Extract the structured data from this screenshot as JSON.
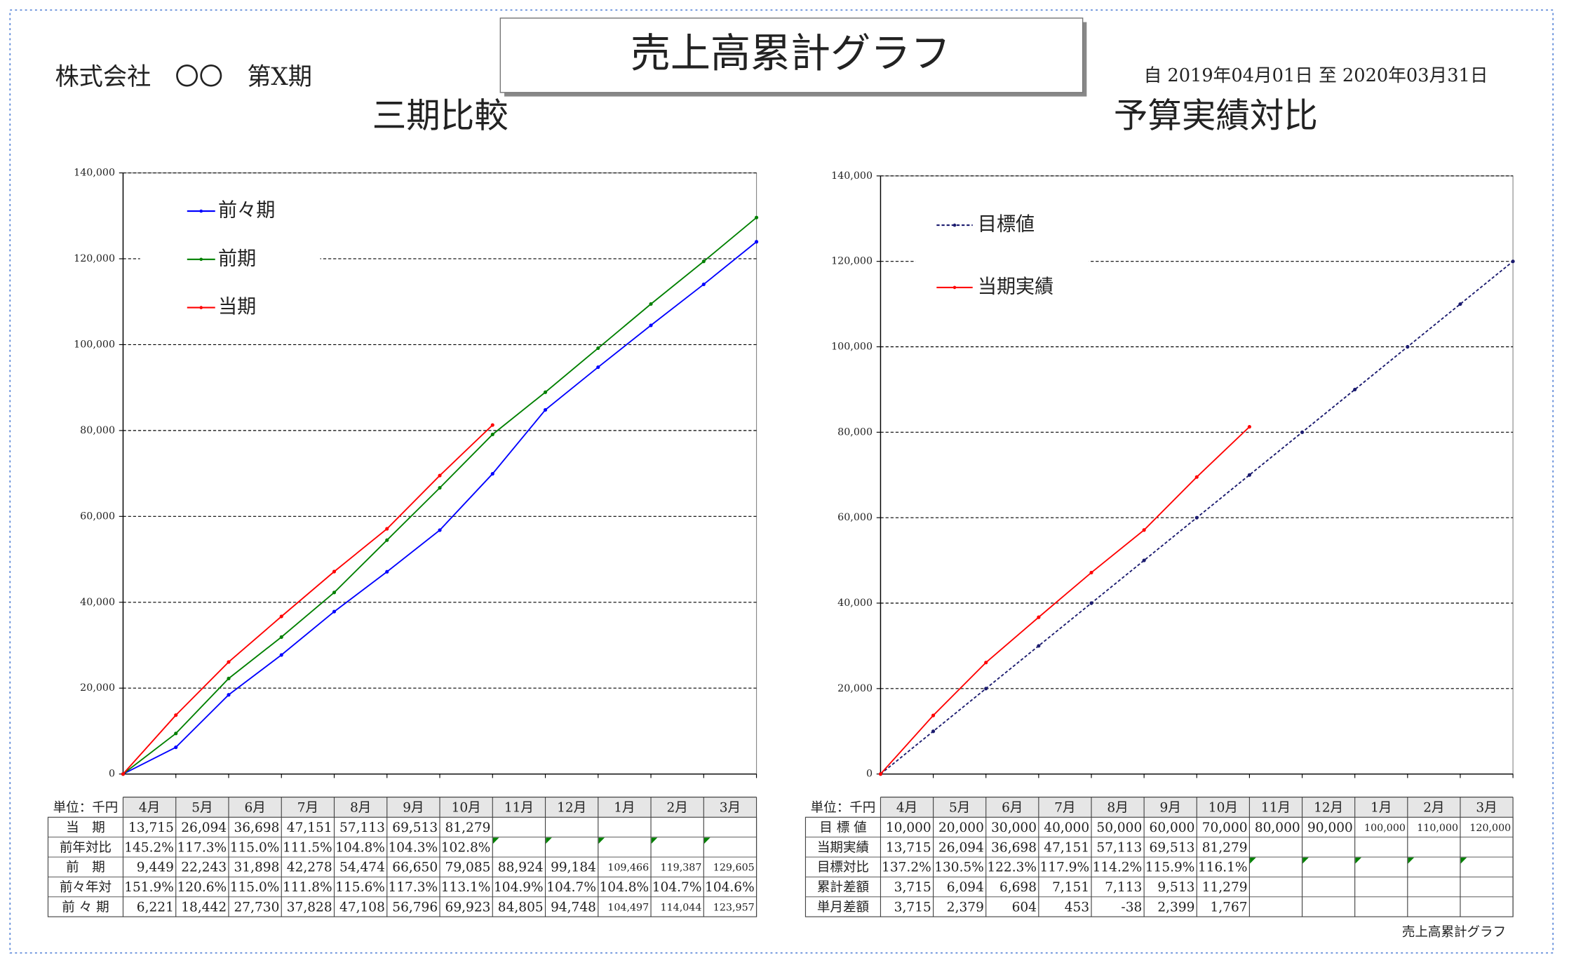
{
  "header": {
    "company": "株式会社　〇〇　第X期",
    "title": "売上高累計グラフ",
    "period": "自 2019年04月01日 至 2020年03月31日",
    "footer": "売上高累計グラフ"
  },
  "chart_data": [
    {
      "type": "line",
      "title": "三期比較",
      "legend": "upper left",
      "grid": true,
      "ylim": [
        0,
        140000
      ],
      "yticks": [
        0,
        {
          "value": 20000,
          "label": "20,000"
        },
        {
          "value": 40000,
          "label": "40,000"
        },
        {
          "value": 60000,
          "label": "60,000"
        },
        {
          "value": 80000,
          "label": "80,000"
        },
        {
          "value": 100000,
          "label": "100,000"
        },
        {
          "value": 120000,
          "label": "120,000"
        },
        {
          "value": 140000,
          "label": "140,000"
        }
      ],
      "series": [
        {
          "name": "前々期",
          "color": "#0000ff",
          "values": [
            0,
            6221,
            18442,
            27730,
            37828,
            47108,
            56796,
            69923,
            84805,
            94748,
            104497,
            114044,
            123957
          ]
        },
        {
          "name": "前期",
          "color": "#008000",
          "values": [
            0,
            9449,
            22243,
            31898,
            42278,
            54474,
            66650,
            79085,
            88924,
            99184,
            109466,
            119387,
            129605
          ]
        },
        {
          "name": "当期",
          "color": "#ff0000",
          "values": [
            0,
            13715,
            26094,
            36698,
            47151,
            57113,
            69513,
            81279,
            null,
            null,
            null,
            null,
            null
          ]
        }
      ]
    },
    {
      "type": "line",
      "title": "予算実績対比",
      "legend": "upper left",
      "grid": true,
      "ylim": [
        0,
        140000
      ],
      "yticks": [
        0,
        {
          "value": 20000,
          "label": "20,000"
        },
        {
          "value": 40000,
          "label": "40,000"
        },
        {
          "value": 60000,
          "label": "60,000"
        },
        {
          "value": 80000,
          "label": "80,000"
        },
        {
          "value": 100000,
          "label": "100,000"
        },
        {
          "value": 120000,
          "label": "120,000"
        },
        {
          "value": 140000,
          "label": "140,000"
        }
      ],
      "series": [
        {
          "name": "目標値",
          "color": "#1a1a6e",
          "dashed": true,
          "values": [
            0,
            10000,
            20000,
            30000,
            40000,
            50000,
            60000,
            70000,
            80000,
            90000,
            100000,
            110000,
            120000
          ]
        },
        {
          "name": "当期実績",
          "color": "#ff0000",
          "values": [
            0,
            13715,
            26094,
            36698,
            47151,
            57113,
            69513,
            81279,
            null,
            null,
            null,
            null,
            null
          ]
        }
      ]
    }
  ],
  "tables": [
    {
      "header": [
        "単位：千円",
        "4月",
        "5月",
        "6月",
        "7月",
        "8月",
        "9月",
        "10月",
        "11月",
        "12月",
        "1月",
        "2月",
        "3月"
      ],
      "rows": [
        {
          "label": "当　期",
          "cells": [
            "13,715",
            "26,094",
            "36,698",
            "47,151",
            "57,113",
            "69,513",
            "81,279"
          ]
        },
        {
          "label": "前年対比",
          "cells": [
            "145.2%",
            "117.3%",
            "115.0%",
            "111.5%",
            "104.8%",
            "104.3%",
            "102.8%"
          ]
        },
        {
          "label": "前　期",
          "cells": [
            "9,449",
            "22,243",
            "31,898",
            "42,278",
            "54,474",
            "66,650",
            "79,085",
            "88,924",
            "99,184",
            "109,466",
            "119,387",
            "129,605"
          ]
        },
        {
          "label": "前々年対",
          "cells": [
            "151.9%",
            "120.6%",
            "115.0%",
            "111.8%",
            "115.6%",
            "117.3%",
            "113.1%",
            "104.9%",
            "104.7%",
            "104.8%",
            "104.7%",
            "104.6%"
          ]
        },
        {
          "label": "前 々 期",
          "cells": [
            "6,221",
            "18,442",
            "27,730",
            "37,828",
            "47,108",
            "56,796",
            "69,923",
            "84,805",
            "94,748",
            "104,497",
            "114,044",
            "123,957"
          ]
        }
      ]
    },
    {
      "header": [
        "単位：千円",
        "4月",
        "5月",
        "6月",
        "7月",
        "8月",
        "9月",
        "10月",
        "11月",
        "12月",
        "1月",
        "2月",
        "3月"
      ],
      "rows": [
        {
          "label": "目 標 値",
          "cells": [
            "10,000",
            "20,000",
            "30,000",
            "40,000",
            "50,000",
            "60,000",
            "70,000",
            "80,000",
            "90,000",
            "100,000",
            "110,000",
            "120,000"
          ]
        },
        {
          "label": "当期実績",
          "cells": [
            "13,715",
            "26,094",
            "36,698",
            "47,151",
            "57,113",
            "69,513",
            "81,279"
          ]
        },
        {
          "label": "目標対比",
          "cells": [
            "137.2%",
            "130.5%",
            "122.3%",
            "117.9%",
            "114.2%",
            "115.9%",
            "116.1%"
          ]
        },
        {
          "label": "累計差額",
          "cells": [
            "3,715",
            "6,094",
            "6,698",
            "7,151",
            "7,113",
            "9,513",
            "11,279"
          ]
        },
        {
          "label": "単月差額",
          "cells": [
            "3,715",
            "2,379",
            "604",
            "453",
            "-38",
            "2,399",
            "1,767"
          ]
        }
      ]
    }
  ]
}
